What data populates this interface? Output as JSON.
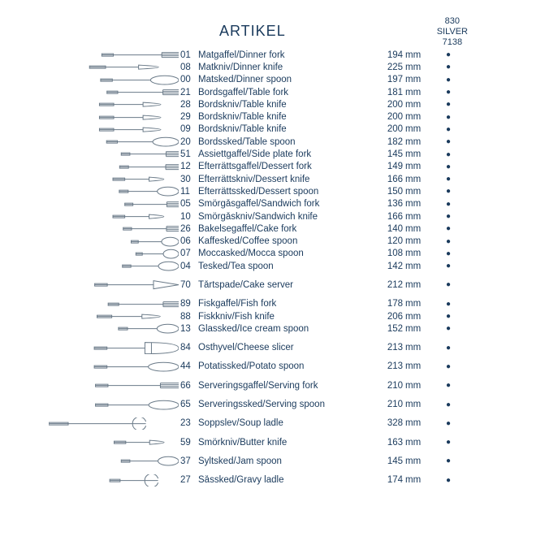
{
  "header": {
    "title": "ARTIKEL",
    "right_line1": "830",
    "right_line2": "SILVER",
    "right_line3": "7138"
  },
  "unit_label": "mm",
  "dot_char": "●",
  "text_color": "#1a3a5c",
  "icon_stroke": "#6a7a88",
  "groups": [
    [
      {
        "code": "01",
        "name": "Matgaffel/Dinner fork",
        "mm": 194,
        "shape": "fork"
      },
      {
        "code": "08",
        "name": "Matkniv/Dinner knife",
        "mm": 225,
        "shape": "knife"
      },
      {
        "code": "00",
        "name": "Matsked/Dinner spoon",
        "mm": 197,
        "shape": "spoon"
      },
      {
        "code": "21",
        "name": "Bordsgaffel/Table fork",
        "mm": 181,
        "shape": "fork"
      },
      {
        "code": "28",
        "name": "Bordskniv/Table knife",
        "mm": 200,
        "shape": "knife"
      },
      {
        "code": "29",
        "name": "Bordskniv/Table knife",
        "mm": 200,
        "shape": "knife"
      },
      {
        "code": "09",
        "name": "Bordskniv/Table knife",
        "mm": 200,
        "shape": "knife"
      },
      {
        "code": "20",
        "name": "Bordssked/Table spoon",
        "mm": 182,
        "shape": "spoon"
      },
      {
        "code": "51",
        "name": "Assiettgaffel/Side plate fork",
        "mm": 145,
        "shape": "fork"
      },
      {
        "code": "12",
        "name": "Efterrättsgaffel/Dessert fork",
        "mm": 149,
        "shape": "fork"
      },
      {
        "code": "30",
        "name": "Efterrättskniv/Dessert knife",
        "mm": 166,
        "shape": "knife"
      },
      {
        "code": "11",
        "name": "Efterrättssked/Dessert spoon",
        "mm": 150,
        "shape": "spoon"
      },
      {
        "code": "05",
        "name": "Smörgåsgaffel/Sandwich fork",
        "mm": 136,
        "shape": "fork"
      },
      {
        "code": "10",
        "name": "Smörgåskniv/Sandwich knife",
        "mm": 166,
        "shape": "knife"
      },
      {
        "code": "26",
        "name": "Bakelsegaffel/Cake fork",
        "mm": 140,
        "shape": "fork"
      },
      {
        "code": "06",
        "name": "Kaffesked/Coffee spoon",
        "mm": 120,
        "shape": "spoon"
      },
      {
        "code": "07",
        "name": "Moccasked/Mocca spoon",
        "mm": 108,
        "shape": "spoon"
      },
      {
        "code": "04",
        "name": "Tesked/Tea spoon",
        "mm": 142,
        "shape": "spoon"
      }
    ],
    [
      {
        "code": "70",
        "name": "Tårtspade/Cake server",
        "mm": 212,
        "shape": "server"
      }
    ],
    [
      {
        "code": "89",
        "name": "Fiskgaffel/Fish fork",
        "mm": 178,
        "shape": "fork"
      },
      {
        "code": "88",
        "name": "Fiskkniv/Fish knife",
        "mm": 206,
        "shape": "knife"
      },
      {
        "code": "13",
        "name": "Glassked/Ice cream spoon",
        "mm": 152,
        "shape": "spoon"
      }
    ],
    [
      {
        "code": "84",
        "name": "Osthyvel/Cheese slicer",
        "mm": 213,
        "shape": "slicer"
      }
    ],
    [
      {
        "code": "44",
        "name": "Potatissked/Potato spoon",
        "mm": 213,
        "shape": "spoon"
      }
    ],
    [
      {
        "code": "66",
        "name": "Serveringsgaffel/Serving fork",
        "mm": 210,
        "shape": "fork"
      }
    ],
    [
      {
        "code": "65",
        "name": "Serveringssked/Serving spoon",
        "mm": 210,
        "shape": "spoon"
      }
    ],
    [
      {
        "code": "23",
        "name": "Soppslev/Soup ladle",
        "mm": 328,
        "shape": "ladle"
      }
    ],
    [
      {
        "code": "59",
        "name": "Smörkniv/Butter knife",
        "mm": 163,
        "shape": "knife"
      }
    ],
    [
      {
        "code": "37",
        "name": "Syltsked/Jam spoon",
        "mm": 145,
        "shape": "spoon"
      }
    ],
    [
      {
        "code": "27",
        "name": "Såssked/Gravy ladle",
        "mm": 174,
        "shape": "ladle"
      }
    ]
  ]
}
